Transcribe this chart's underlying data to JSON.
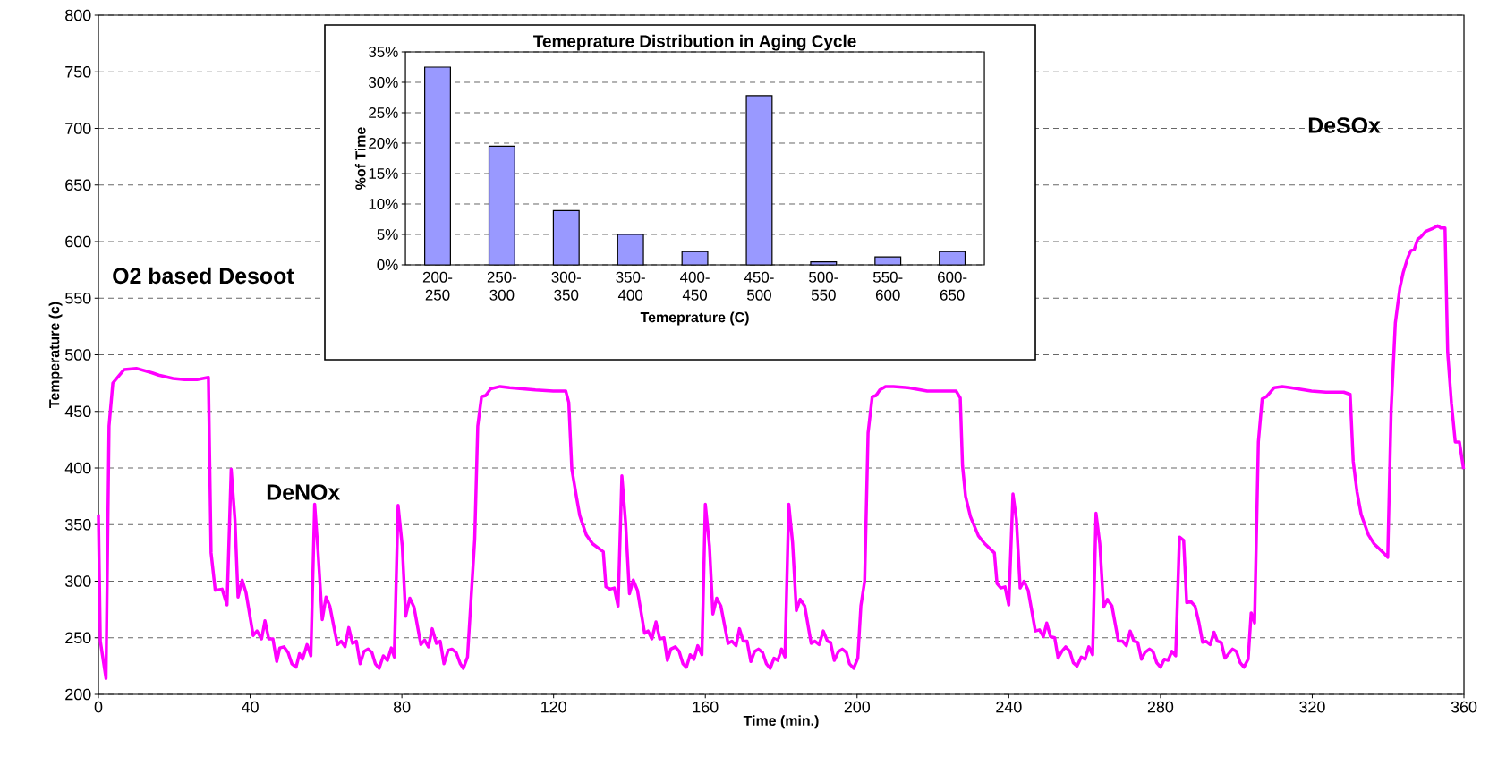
{
  "chart_data": [
    {
      "type": "line",
      "xlabel": "Time (min.)",
      "ylabel": "Temperature (c)",
      "xlim": [
        0,
        360
      ],
      "xticks": [
        0,
        40,
        80,
        120,
        160,
        200,
        240,
        280,
        320,
        360
      ],
      "ylim": [
        200,
        800
      ],
      "yticks": [
        200,
        250,
        300,
        350,
        400,
        450,
        500,
        550,
        600,
        650,
        700,
        750,
        800
      ],
      "grid": "y",
      "x": [
        0,
        0.5,
        2,
        2.8,
        3.8,
        6.8,
        10,
        14.2,
        15.9,
        19.7,
        22.7,
        26,
        29,
        29.7,
        30.8,
        32.6,
        33.9,
        35,
        36,
        36.8,
        37.9,
        38.9,
        40.8,
        41.8,
        43,
        43.9,
        44.9,
        46,
        47,
        47.8,
        48.9,
        50,
        51,
        52.1,
        53,
        53.8,
        55,
        56,
        57,
        57.8,
        59,
        60,
        61,
        63,
        64,
        65,
        66,
        67,
        68,
        69,
        70,
        71.1,
        72.1,
        73,
        74,
        75.1,
        76.2,
        77.2,
        78,
        79,
        80.1,
        81,
        82.1,
        83.2,
        85,
        86,
        87,
        88,
        89.1,
        90.1,
        91.1,
        92.2,
        93.2,
        94.3,
        95.4,
        96.2,
        97.3,
        99.2,
        100,
        101,
        102.1,
        103.4,
        105.9,
        108.4,
        115.2,
        119.9,
        123.2,
        124,
        124.8,
        126.1,
        126.9,
        128.6,
        130.3,
        133.1,
        133.8,
        134.9,
        136,
        137,
        138,
        139,
        140,
        141,
        142.1,
        144,
        144.9,
        145.9,
        147,
        148,
        149.1,
        150,
        150.9,
        152.1,
        153.1,
        154.1,
        155,
        156,
        157,
        158,
        159.1,
        160,
        161.1,
        162,
        163,
        164.1,
        166,
        167,
        168.1,
        169,
        170,
        171,
        172,
        173,
        174,
        175.1,
        176.1,
        177.1,
        178.1,
        179.1,
        180.1,
        181,
        182,
        183,
        184,
        185,
        186.2,
        187.9,
        188.9,
        190,
        191.1,
        192.2,
        193,
        194,
        195.1,
        196.1,
        197.2,
        198,
        199.1,
        200.2,
        201,
        202,
        202.9,
        204,
        205,
        206,
        207.5,
        209.6,
        213.4,
        218.5,
        223.1,
        226.1,
        227.2,
        227.8,
        228.6,
        229.9,
        232,
        233.7,
        236.2,
        236.9,
        237.9,
        239,
        240,
        241.1,
        242,
        243,
        244,
        245.1,
        247,
        248.1,
        249.1,
        250,
        251,
        252.1,
        253,
        254,
        255,
        256.1,
        257,
        258,
        259.1,
        260.1,
        261.1,
        262.1,
        263,
        264,
        265,
        266,
        267.2,
        268.9,
        270,
        271,
        272,
        273,
        274,
        275,
        275.9,
        277.1,
        278,
        279,
        280,
        281,
        282,
        283,
        284,
        285,
        286.1,
        286.9,
        288,
        289.1,
        290.1,
        291.1,
        292,
        293.1,
        294.1,
        295,
        296,
        297,
        298,
        299,
        300,
        301,
        302,
        303.1,
        303.9,
        304.8,
        305.8,
        306.8,
        307.9,
        310,
        312.1,
        314.3,
        319.8,
        323.6,
        328.3,
        330,
        330.8,
        331.8,
        332.9,
        334.8,
        336.3,
        338.8,
        339.9,
        340.8,
        341.9,
        343.1,
        344,
        345.2,
        346,
        346.9,
        347.8,
        348.6,
        349.9,
        352,
        353.1,
        353.9,
        355,
        355.7,
        356.7,
        357.7,
        358.8,
        359.9
      ],
      "series": [
        {
          "color": "#ff00ff",
          "values": [
            359,
            247,
            214,
            437,
            475,
            487,
            488,
            484,
            482,
            479,
            478,
            478,
            480,
            325,
            292,
            293,
            279,
            399,
            354,
            286,
            301,
            290,
            252,
            256,
            249,
            265,
            249,
            249,
            229,
            241,
            242,
            237,
            227,
            224,
            236,
            231,
            244,
            234,
            368,
            331,
            266,
            286,
            278,
            244,
            247,
            242,
            259,
            245,
            247,
            227,
            238,
            240,
            237,
            227,
            223,
            234,
            230,
            241,
            233,
            367,
            331,
            269,
            285,
            277,
            244,
            248,
            242,
            258,
            245,
            247,
            227,
            239,
            240,
            237,
            227,
            223,
            233,
            337,
            437,
            463,
            464,
            470,
            472,
            471,
            469,
            468,
            468,
            458,
            399,
            373,
            358,
            341,
            333,
            326,
            295,
            293,
            294,
            278,
            393,
            351,
            289,
            301,
            292,
            254,
            256,
            249,
            264,
            249,
            250,
            230,
            240,
            242,
            238,
            227,
            224,
            235,
            231,
            243,
            235,
            368,
            331,
            271,
            285,
            278,
            245,
            247,
            243,
            258,
            247,
            247,
            229,
            238,
            240,
            237,
            227,
            223,
            232,
            230,
            240,
            233,
            368,
            334,
            274,
            284,
            278,
            245,
            247,
            244,
            256,
            247,
            246,
            230,
            238,
            240,
            237,
            227,
            223,
            232,
            278,
            300,
            431,
            463,
            464,
            469,
            472,
            472,
            471,
            468,
            468,
            468,
            462,
            402,
            375,
            357,
            340,
            333,
            325,
            298,
            294,
            295,
            279,
            377,
            355,
            294,
            300,
            292,
            256,
            257,
            251,
            263,
            251,
            250,
            232,
            238,
            242,
            238,
            228,
            225,
            233,
            231,
            242,
            235,
            360,
            333,
            277,
            284,
            278,
            247,
            247,
            243,
            256,
            247,
            246,
            231,
            237,
            240,
            238,
            228,
            224,
            231,
            230,
            238,
            234,
            339,
            336,
            281,
            282,
            278,
            264,
            246,
            247,
            244,
            255,
            247,
            246,
            232,
            236,
            240,
            238,
            228,
            224,
            231,
            272,
            263,
            423,
            461,
            463,
            471,
            472,
            471,
            468,
            467,
            467,
            465,
            406,
            379,
            359,
            341,
            333,
            325,
            321,
            451,
            528,
            559,
            573,
            586,
            592,
            593,
            602,
            604,
            609,
            612,
            614,
            612,
            612,
            502,
            457,
            423,
            423,
            399
          ]
        }
      ],
      "annotations": [
        "O2 based Desoot",
        "DeNOx",
        "DeSOx"
      ]
    },
    {
      "type": "bar",
      "title": "Temeprature Distribution in Aging Cycle",
      "xlabel": "Temeprature (C)",
      "ylabel": "%of Time",
      "categories": [
        "200-250",
        "250-300",
        "300-350",
        "350-400",
        "400-450",
        "450-500",
        "500-550",
        "550-600",
        "600-650"
      ],
      "ylim": [
        0,
        35
      ],
      "yticks": [
        {
          "value": 0,
          "label": "0%"
        },
        {
          "value": 5,
          "label": "5%"
        },
        {
          "value": 10,
          "label": "10%"
        },
        {
          "value": 15,
          "label": "15%"
        },
        {
          "value": 20,
          "label": "20%"
        },
        {
          "value": 25,
          "label": "25%"
        },
        {
          "value": 30,
          "label": "30%"
        },
        {
          "value": 35,
          "label": "35%"
        }
      ],
      "grid": "y",
      "series": [
        {
          "color": "#9999ff",
          "values": [
            32.5,
            19.5,
            8.9,
            5.0,
            2.2,
            27.8,
            0.5,
            1.3,
            2.2
          ]
        }
      ]
    }
  ]
}
